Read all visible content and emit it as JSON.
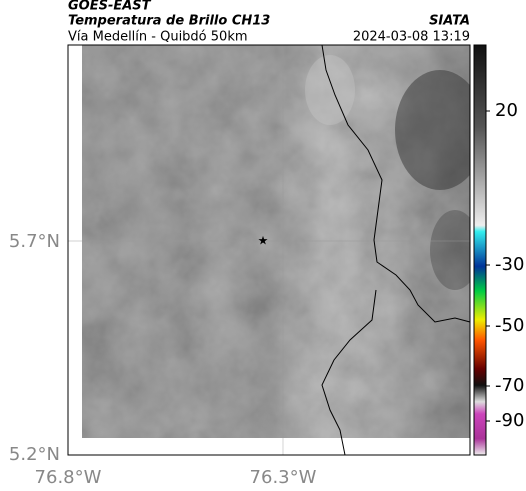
{
  "header": {
    "source": "GOES-EAST",
    "title": "Temperatura de Brillo CH13",
    "subtitle": "Vía Medellín - Quibdó 50km",
    "brand": "SIATA",
    "timestamp": "2024-03-08 13:19"
  },
  "map": {
    "lat_labels": [
      "5.7°N",
      "5.2°N"
    ],
    "lon_labels": [
      "76.8°W",
      "76.3°W"
    ]
  },
  "colorbar": {
    "ticks": [
      20,
      -30,
      -50,
      -70,
      -90
    ]
  }
}
